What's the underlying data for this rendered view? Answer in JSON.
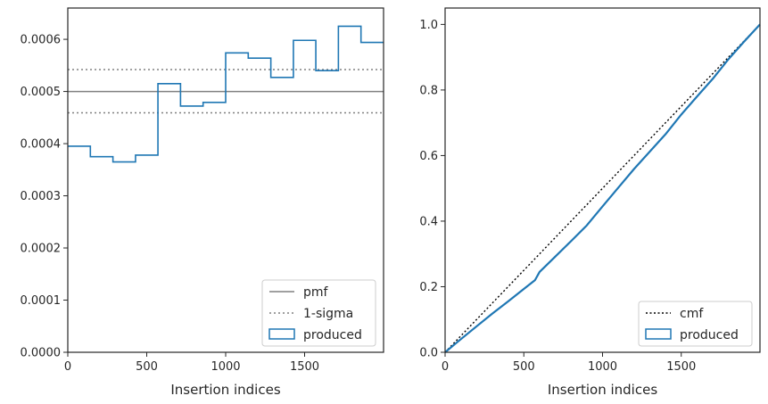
{
  "colors": {
    "produced": "#1f77b4",
    "pmf": "#808080",
    "sigma": "#808080",
    "cmf": "#000000",
    "axes": "#262626"
  },
  "chart_data": [
    {
      "type": "step",
      "xlabel": "Insertion indices",
      "ylabel": "",
      "xlim": [
        0,
        2000
      ],
      "ylim": [
        0,
        0.00066
      ],
      "grid": false,
      "legend_placement": "lower-right",
      "xticks": [
        0,
        500,
        1000,
        1500
      ],
      "xtick_labels": [
        "0",
        "500",
        "1000",
        "1500"
      ],
      "yticks": [
        0,
        0.0001,
        0.0002,
        0.0003,
        0.0004,
        0.0005,
        0.0006
      ],
      "ytick_labels": [
        "0.0000",
        "0.0001",
        "0.0002",
        "0.0003",
        "0.0004",
        "0.0005",
        "0.0006"
      ],
      "legend": [
        "pmf",
        "1-sigma",
        "produced"
      ],
      "pmf": 0.0005,
      "sigma_band": [
        0.000459,
        0.000542
      ],
      "bin_edges": [
        0,
        143,
        286,
        429,
        571,
        714,
        857,
        1000,
        1143,
        1286,
        1429,
        1571,
        1714,
        1857,
        2000
      ],
      "values": [
        0.000395,
        0.000375,
        0.000365,
        0.000378,
        0.000515,
        0.000472,
        0.000479,
        0.000574,
        0.000564,
        0.000527,
        0.000598,
        0.00054,
        0.000625,
        0.000594
      ]
    },
    {
      "type": "line",
      "xlabel": "Insertion indices",
      "ylabel": "",
      "xlim": [
        0,
        2000
      ],
      "ylim": [
        0,
        1.05
      ],
      "grid": false,
      "legend_placement": "lower-right",
      "xticks": [
        0,
        500,
        1000,
        1500
      ],
      "xtick_labels": [
        "0",
        "500",
        "1000",
        "1500"
      ],
      "yticks": [
        0,
        0.2,
        0.4,
        0.6,
        0.8,
        1.0
      ],
      "ytick_labels": [
        "0.0",
        "0.2",
        "0.4",
        "0.6",
        "0.8",
        "1.0"
      ],
      "legend": [
        "cmf",
        "produced"
      ],
      "cmf": {
        "x": [
          0,
          2000
        ],
        "y": [
          0,
          1.0
        ]
      },
      "produced": {
        "x": [
          0,
          100,
          200,
          300,
          400,
          500,
          571,
          600,
          700,
          800,
          900,
          1000,
          1100,
          1200,
          1300,
          1400,
          1500,
          1600,
          1700,
          1800,
          1900,
          2000
        ],
        "y": [
          0,
          0.04,
          0.079,
          0.118,
          0.155,
          0.193,
          0.22,
          0.245,
          0.292,
          0.339,
          0.387,
          0.445,
          0.502,
          0.559,
          0.612,
          0.665,
          0.725,
          0.78,
          0.834,
          0.894,
          0.948,
          1.0
        ]
      }
    }
  ]
}
